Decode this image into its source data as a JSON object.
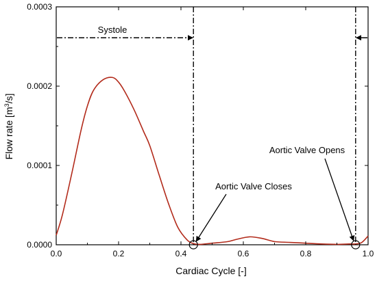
{
  "chart_data": {
    "type": "line",
    "xlabel": "Cardiac Cycle [-]",
    "ylabel_base": "Flow rate [m",
    "ylabel_sup": "3",
    "ylabel_end": "/s]",
    "xlim": [
      0.0,
      1.0
    ],
    "ylim": [
      0.0,
      0.0003
    ],
    "x_ticks": [
      0.0,
      0.2,
      0.4,
      0.6,
      0.8,
      1.0
    ],
    "x_tick_labels": [
      "0.0",
      "0.2",
      "0.4",
      "0.6",
      "0.8",
      "1.0"
    ],
    "y_ticks": [
      0.0,
      0.0001,
      0.0002,
      0.0003
    ],
    "y_tick_labels": [
      "0.0000",
      "0.0001",
      "0.0002",
      "0.0003"
    ],
    "grid": false,
    "series": [
      {
        "color": "#b22a1a",
        "x": [
          0.0,
          0.02,
          0.05,
          0.08,
          0.1,
          0.12,
          0.15,
          0.18,
          0.2,
          0.22,
          0.25,
          0.28,
          0.3,
          0.33,
          0.36,
          0.39,
          0.42,
          0.44,
          0.46,
          0.5,
          0.55,
          0.58,
          0.62,
          0.66,
          0.7,
          0.75,
          0.8,
          0.85,
          0.9,
          0.94,
          0.96,
          0.98,
          1.0
        ],
        "y": [
          1.2e-05,
          3.8e-05,
          9e-05,
          0.000145,
          0.000175,
          0.000195,
          0.000208,
          0.000211,
          0.000205,
          0.000193,
          0.00017,
          0.000143,
          0.000125,
          8.8e-05,
          5.2e-05,
          2.2e-05,
          6e-06,
          1.5e-06,
          5e-07,
          2e-06,
          4e-06,
          7e-06,
          1e-05,
          8e-06,
          4e-06,
          3e-06,
          2e-06,
          1e-06,
          5e-07,
          1e-06,
          1e-06,
          3e-06,
          1.1e-05
        ]
      }
    ],
    "markers": [
      {
        "x": 0.44,
        "y": 0.0
      },
      {
        "x": 0.96,
        "y": 0.0
      }
    ],
    "vlines": [
      0.44,
      0.96
    ],
    "systole_y": 0.000261,
    "annotations": {
      "systole": "Systole",
      "closes": "Aortic Valve Closes",
      "opens": "Aortic Valve Opens"
    }
  }
}
